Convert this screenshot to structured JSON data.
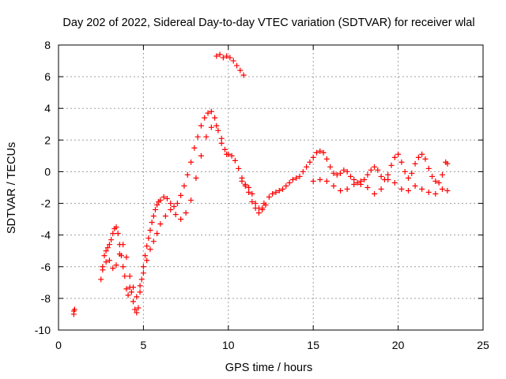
{
  "chart_data": {
    "type": "scatter",
    "title": "Day 202 of 2022, Sidereal Day-to-day VTEC variation (SDTVAR) for receiver wlal",
    "xlabel": "GPS time / hours",
    "ylabel": "SDTVAR / TECUs",
    "xlim": [
      0,
      25
    ],
    "ylim": [
      -10,
      8
    ],
    "xticks": [
      "0",
      "5",
      "10",
      "15",
      "20",
      "25"
    ],
    "yticks": [
      "-10",
      "-8",
      "-6",
      "-4",
      "-2",
      "0",
      "2",
      "4",
      "6",
      "8"
    ],
    "grid": true,
    "marker": "+",
    "color": "#ff0000",
    "series": [
      {
        "name": "SDTVAR",
        "x": [
          0.9,
          0.9,
          0.95,
          2.5,
          2.6,
          2.7,
          2.8,
          2.9,
          3.0,
          3.1,
          3.2,
          3.3,
          3.4,
          3.5,
          3.6,
          3.7,
          3.8,
          3.9,
          4.0,
          4.1,
          4.2,
          4.3,
          4.4,
          4.5,
          4.6,
          4.7,
          4.8,
          4.9,
          5.0,
          5.1,
          5.2,
          5.3,
          5.4,
          5.5,
          5.6,
          5.7,
          5.8,
          5.9,
          6.0,
          6.2,
          6.4,
          6.6,
          6.8,
          7.0,
          7.2,
          7.4,
          7.6,
          7.8,
          8.0,
          8.2,
          8.4,
          8.6,
          8.8,
          9.0,
          9.2,
          9.4,
          9.6,
          9.8,
          10.0,
          10.2,
          10.4,
          10.6,
          10.8,
          11.0,
          11.2,
          11.4,
          11.6,
          11.8,
          12.0,
          12.2,
          12.4,
          12.6,
          12.8,
          13.0,
          13.2,
          13.4,
          13.6,
          13.8,
          14.0,
          14.2,
          14.4,
          14.6,
          14.8,
          15.0,
          15.2,
          15.4,
          15.6,
          15.8,
          16.0,
          16.2,
          16.4,
          16.6,
          16.8,
          17.0,
          17.2,
          17.4,
          17.6,
          17.8,
          18.0,
          18.2,
          18.4,
          18.6,
          18.8,
          19.0,
          19.2,
          19.4,
          19.6,
          19.8,
          20.0,
          20.2,
          20.4,
          20.6,
          20.8,
          21.0,
          21.2,
          21.4,
          21.6,
          21.8,
          22.0,
          22.2,
          22.4,
          22.6,
          22.8,
          22.9,
          2.6,
          2.8,
          3.0,
          3.2,
          3.4,
          3.6,
          3.8,
          4.0,
          4.2,
          4.4,
          4.6,
          4.8,
          5.0,
          5.2,
          5.4,
          5.6,
          5.8,
          6.0,
          6.3,
          6.6,
          6.9,
          7.2,
          7.5,
          7.8,
          8.1,
          8.4,
          8.7,
          9.0,
          9.3,
          9.6,
          9.9,
          15.0,
          15.4,
          15.8,
          16.2,
          16.6,
          17.0,
          17.4,
          17.8,
          18.2,
          18.6,
          19.0,
          19.4,
          19.8,
          20.2,
          20.6,
          21.0,
          21.4,
          21.8,
          22.2,
          22.6,
          22.9,
          10.8,
          11.0,
          11.2,
          11.4,
          11.6,
          11.8,
          12.0,
          12.1,
          9.3,
          9.5,
          9.7,
          9.9,
          10.1,
          10.3,
          10.5,
          10.7,
          10.9
        ],
        "y": [
          -8.8,
          -9.0,
          -8.7,
          -6.8,
          -6.0,
          -5.3,
          -5.0,
          -4.8,
          -4.6,
          -4.3,
          -3.9,
          -3.6,
          -3.5,
          -3.9,
          -4.6,
          -5.3,
          -6.0,
          -6.6,
          -7.4,
          -7.8,
          -7.3,
          -7.6,
          -8.2,
          -8.7,
          -8.9,
          -8.6,
          -7.6,
          -6.8,
          -6.0,
          -5.3,
          -4.7,
          -4.2,
          -3.7,
          -3.2,
          -2.8,
          -2.4,
          -2.1,
          -1.9,
          -1.8,
          -1.6,
          -1.7,
          -2.0,
          -2.2,
          -2.0,
          -1.5,
          -0.9,
          -0.2,
          0.6,
          1.5,
          2.2,
          2.9,
          3.4,
          3.7,
          3.8,
          3.4,
          2.6,
          1.8,
          1.4,
          1.1,
          1.0,
          0.7,
          0.2,
          -0.4,
          -0.8,
          -1.0,
          -1.4,
          -2.0,
          -2.3,
          -2.4,
          -2.1,
          -1.6,
          -1.4,
          -1.3,
          -1.2,
          -1.1,
          -0.9,
          -0.7,
          -0.5,
          -0.4,
          -0.3,
          0.0,
          0.3,
          0.6,
          0.9,
          1.2,
          1.3,
          1.2,
          0.8,
          0.3,
          -0.1,
          -0.2,
          -0.1,
          0.1,
          0.0,
          -0.3,
          -0.5,
          -0.7,
          -0.8,
          -0.5,
          -0.2,
          0.1,
          0.3,
          0.1,
          -0.3,
          -0.5,
          -0.2,
          0.4,
          0.9,
          1.1,
          0.6,
          0.0,
          -0.4,
          -0.1,
          0.5,
          0.9,
          1.1,
          0.8,
          0.2,
          -0.3,
          -0.6,
          -0.7,
          -0.2,
          0.6,
          0.5,
          -6.2,
          -5.7,
          -5.6,
          -6.1,
          -5.9,
          -5.2,
          -4.6,
          -5.4,
          -6.6,
          -7.3,
          -7.9,
          -7.2,
          -6.4,
          -5.6,
          -4.9,
          -4.4,
          -3.9,
          -3.3,
          -2.8,
          -2.4,
          -2.7,
          -3.0,
          -2.6,
          -1.8,
          -0.4,
          1.0,
          2.2,
          2.8,
          2.9,
          2.1,
          1.1,
          -0.6,
          -0.5,
          -0.6,
          -0.9,
          -1.2,
          -1.1,
          -0.8,
          -0.6,
          -1.0,
          -1.4,
          -1.1,
          -0.5,
          -0.7,
          -1.1,
          -1.2,
          -0.9,
          -1.1,
          -1.3,
          -1.4,
          -1.1,
          -1.2,
          -0.6,
          -0.9,
          -1.3,
          -1.9,
          -2.3,
          -2.6,
          -2.3,
          -2.0,
          7.3,
          7.4,
          7.2,
          7.3,
          7.2,
          7.0,
          6.7,
          6.4,
          6.1
        ]
      }
    ]
  }
}
